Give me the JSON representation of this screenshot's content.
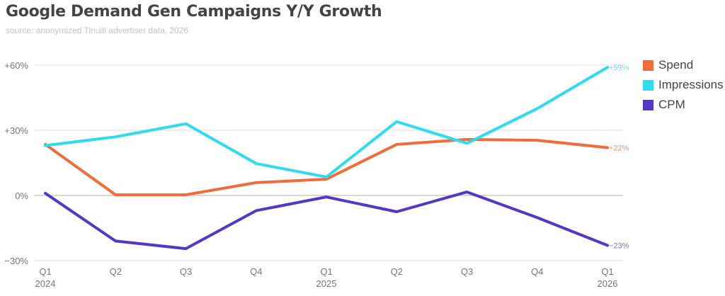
{
  "chart_data": {
    "type": "line",
    "title": "Google Demand Gen Campaigns Y/Y Growth",
    "subtitle": "source: anonymized Tinuiti advertiser data, 2026",
    "categories": [
      "Q1",
      "Q2",
      "Q3",
      "Q4",
      "Q1",
      "Q2",
      "Q3",
      "Q4",
      "Q1"
    ],
    "category_years": [
      "2024",
      "",
      "",
      "",
      "2025",
      "",
      "",
      "",
      "2026"
    ],
    "ylim": [
      -30,
      60
    ],
    "y_ticks": [
      {
        "value": 60,
        "label": "+60%"
      },
      {
        "value": 30,
        "label": "+30%"
      },
      {
        "value": 0,
        "label": "0%"
      },
      {
        "value": -30,
        "label": "−30%"
      }
    ],
    "grid": true,
    "legend_position": "top-right",
    "series": [
      {
        "name": "Spend",
        "color": "#f26b3a",
        "values": [
          23.5,
          0.3,
          0.3,
          5.9,
          7.5,
          23.5,
          25.8,
          25.4,
          22
        ],
        "end_label": "+22%"
      },
      {
        "name": "Impressions",
        "color": "#2fdcef",
        "values": [
          23,
          27,
          33,
          14.7,
          8.5,
          34,
          24,
          40,
          59
        ],
        "end_label": "+59%"
      },
      {
        "name": "CPM",
        "color": "#5436c8",
        "values": [
          1,
          -21,
          -24.5,
          -7,
          -0.7,
          -7.5,
          1.6,
          -10.2,
          -23
        ],
        "end_label": "−23%"
      }
    ]
  }
}
